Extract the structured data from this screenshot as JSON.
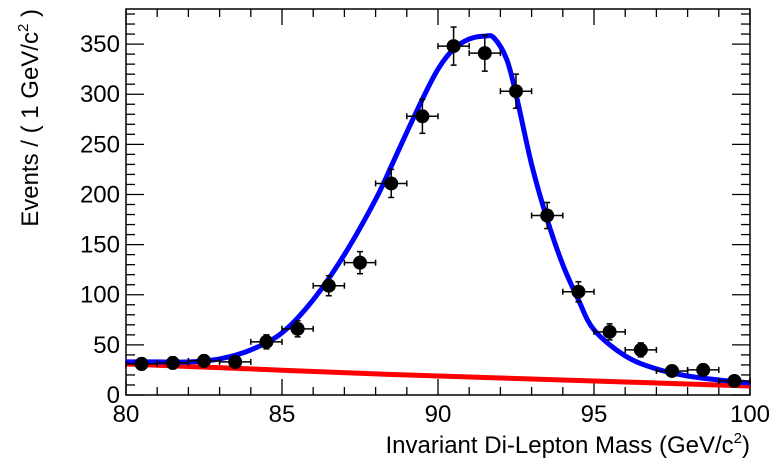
{
  "chart_data": {
    "type": "scatter",
    "xlabel": "Invariant Di-Lepton Mass (GeV/c",
    "xlabel_sup": "2",
    "xlabel_end": ")",
    "ylabel": "Events / ( 1 GeV/c",
    "ylabel_sup": "2",
    "ylabel_end": " )",
    "xlim": [
      80,
      100
    ],
    "ylim": [
      0,
      385
    ],
    "x_ticks": [
      80,
      85,
      90,
      95,
      100
    ],
    "y_ticks": [
      0,
      50,
      100,
      150,
      200,
      250,
      300,
      350
    ],
    "grid": false,
    "series": [
      {
        "kind": "points_with_errors",
        "color": "#000000",
        "x": [
          80.5,
          81.5,
          82.5,
          83.5,
          84.5,
          85.5,
          86.5,
          87.5,
          88.5,
          89.5,
          90.5,
          91.5,
          92.5,
          93.5,
          94.5,
          95.5,
          96.5,
          97.5,
          98.5,
          99.5
        ],
        "y": [
          31,
          32,
          34,
          33,
          53,
          66,
          109,
          132,
          211,
          278,
          348,
          341,
          303,
          179,
          103,
          63,
          45,
          24,
          25,
          14
        ],
        "y_err": [
          6,
          6,
          6,
          6,
          7,
          8,
          10,
          11,
          14,
          17,
          19,
          18,
          17,
          13,
          10,
          8,
          7,
          5,
          5,
          4
        ],
        "x_err": [
          0.5,
          0.5,
          0.5,
          0.5,
          0.5,
          0.5,
          0.5,
          0.5,
          0.5,
          0.5,
          0.5,
          0.5,
          0.5,
          0.5,
          0.5,
          0.5,
          0.5,
          0.5,
          0.5,
          0.5
        ]
      },
      {
        "kind": "line",
        "color": "#0000ff",
        "x": [
          80,
          81,
          82,
          83,
          84,
          85,
          86,
          87,
          88,
          88.5,
          89,
          89.5,
          90,
          90.5,
          91,
          91.5,
          91.8,
          92.2,
          92.5,
          93,
          93.5,
          94,
          94.5,
          95,
          96,
          97,
          98,
          99,
          100
        ],
        "y": [
          33,
          33,
          33,
          36,
          45,
          62,
          95,
          140,
          195,
          228,
          262,
          295,
          325,
          345,
          355,
          358,
          356,
          335,
          300,
          230,
          175,
          130,
          95,
          65,
          39,
          26,
          19,
          15,
          12
        ]
      },
      {
        "kind": "line",
        "color": "#ff0000",
        "x": [
          80,
          84,
          88,
          92,
          96,
          100
        ],
        "y": [
          31,
          26,
          21,
          17,
          13,
          9
        ]
      }
    ]
  }
}
